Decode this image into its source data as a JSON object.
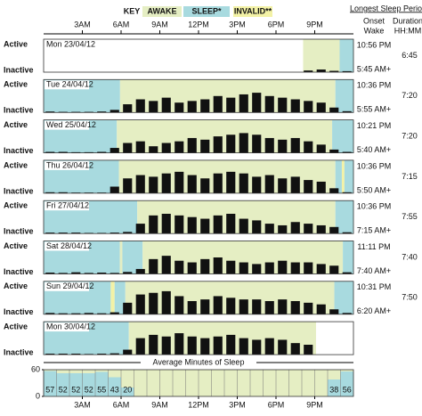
{
  "header": {
    "key": "KEY",
    "awake": "AWAKE",
    "sleep": "SLEEP*",
    "invalid": "INVALID**",
    "longest": "Longest Sleep Period",
    "onset": "Onset",
    "wake": "Wake",
    "duration": "Duration",
    "hhmm": "HH:MM"
  },
  "colors": {
    "awake": "#e5eec3",
    "sleep": "#a8dadf",
    "invalid": "#f3f2a6",
    "activity": "#111111"
  },
  "row_labels": {
    "active": "Active",
    "inactive": "Inactive"
  },
  "hour_range": [
    0,
    24
  ],
  "hour_ticks": [
    {
      "value": 3,
      "label": "3AM"
    },
    {
      "value": 6,
      "label": "6AM"
    },
    {
      "value": 9,
      "label": "9AM"
    },
    {
      "value": 12,
      "label": "12PM"
    },
    {
      "value": 15,
      "label": "3PM"
    },
    {
      "value": 18,
      "label": "6PM"
    },
    {
      "value": 21,
      "label": "9PM"
    }
  ],
  "activity_range": [
    0,
    100
  ],
  "days": [
    {
      "label": "Mon 23/04/12",
      "onset": "10:56 PM",
      "wake": "5:45 AM+",
      "duration": "6:45",
      "segments": [
        [
          20.1,
          22.93,
          "awake"
        ],
        [
          22.93,
          24,
          "sleep"
        ]
      ],
      "activity": [
        null,
        null,
        null,
        null,
        null,
        null,
        null,
        null,
        null,
        null,
        null,
        null,
        null,
        null,
        null,
        null,
        null,
        null,
        null,
        null,
        5,
        8,
        4,
        3
      ]
    },
    {
      "label": "Tue 24/04/12",
      "onset": "10:36 PM",
      "wake": "5:55 AM+",
      "duration": "7:20",
      "segments": [
        [
          0,
          5.92,
          "sleep"
        ],
        [
          5.92,
          22.6,
          "awake"
        ],
        [
          22.6,
          24,
          "sleep"
        ]
      ],
      "activity": [
        3,
        2,
        2,
        2,
        3,
        8,
        25,
        40,
        35,
        45,
        30,
        35,
        40,
        50,
        45,
        55,
        60,
        50,
        45,
        40,
        35,
        30,
        15,
        4
      ]
    },
    {
      "label": "Wed 25/04/12",
      "onset": "10:21 PM",
      "wake": "5:40 AM+",
      "duration": "7:20",
      "segments": [
        [
          0,
          5.67,
          "sleep"
        ],
        [
          5.67,
          22.35,
          "awake"
        ],
        [
          22.35,
          24,
          "sleep"
        ]
      ],
      "activity": [
        3,
        3,
        2,
        2,
        3,
        15,
        30,
        35,
        20,
        30,
        35,
        45,
        40,
        50,
        55,
        60,
        55,
        45,
        40,
        45,
        35,
        25,
        10,
        3
      ]
    },
    {
      "label": "Thu 26/04/12",
      "onset": "10:36 PM",
      "wake": "5:50 AM+",
      "duration": "7:15",
      "segments": [
        [
          0,
          5.83,
          "sleep"
        ],
        [
          5.83,
          22.6,
          "awake"
        ],
        [
          22.6,
          23.1,
          "sleep"
        ],
        [
          23.1,
          23.3,
          "invalid"
        ],
        [
          23.3,
          24,
          "sleep"
        ]
      ],
      "activity": [
        3,
        3,
        2,
        2,
        2,
        20,
        45,
        55,
        50,
        60,
        65,
        55,
        45,
        60,
        65,
        60,
        50,
        55,
        45,
        50,
        40,
        35,
        15,
        3
      ]
    },
    {
      "label": "Fri 27/04/12",
      "onset": "10:36 PM",
      "wake": "7:15 AM+",
      "duration": "7:55",
      "segments": [
        [
          0,
          7.25,
          "sleep"
        ],
        [
          7.25,
          22.6,
          "awake"
        ],
        [
          22.6,
          24,
          "sleep"
        ]
      ],
      "activity": [
        3,
        3,
        3,
        2,
        2,
        3,
        5,
        30,
        55,
        60,
        55,
        50,
        45,
        55,
        60,
        45,
        40,
        30,
        25,
        35,
        30,
        25,
        20,
        4
      ]
    },
    {
      "label": "Sat 28/04/12",
      "onset": "11:11 PM",
      "wake": "7:40 AM+",
      "duration": "7:40",
      "segments": [
        [
          0,
          5.9,
          "sleep"
        ],
        [
          5.9,
          6.1,
          "awake"
        ],
        [
          6.1,
          7.67,
          "sleep"
        ],
        [
          7.67,
          23.18,
          "awake"
        ],
        [
          23.18,
          24,
          "sleep"
        ]
      ],
      "activity": [
        4,
        3,
        5,
        3,
        4,
        3,
        6,
        15,
        45,
        55,
        40,
        35,
        45,
        50,
        40,
        35,
        30,
        35,
        40,
        35,
        35,
        30,
        25,
        5
      ]
    },
    {
      "label": "Sun 29/04/12",
      "onset": "10:31 PM",
      "wake": "6:20 AM+",
      "duration": "7:50",
      "segments": [
        [
          0,
          5.2,
          "sleep"
        ],
        [
          5.2,
          5.5,
          "invalid"
        ],
        [
          5.5,
          6.33,
          "sleep"
        ],
        [
          6.33,
          22.52,
          "awake"
        ],
        [
          22.52,
          24,
          "sleep"
        ]
      ],
      "activity": [
        4,
        3,
        3,
        4,
        3,
        6,
        35,
        60,
        65,
        70,
        55,
        40,
        45,
        55,
        50,
        45,
        45,
        40,
        45,
        40,
        35,
        30,
        15,
        4
      ]
    },
    {
      "label": "Mon 30/04/12",
      "segments": [
        [
          0,
          6.6,
          "sleep"
        ],
        [
          6.6,
          21.1,
          "awake"
        ]
      ],
      "activity": [
        3,
        3,
        3,
        2,
        3,
        4,
        15,
        50,
        60,
        55,
        65,
        55,
        50,
        55,
        60,
        50,
        45,
        50,
        45,
        35,
        30,
        null,
        null,
        null
      ]
    }
  ],
  "average": {
    "title": "Average Minutes of Sleep",
    "ylim": [
      0,
      60
    ],
    "yticks": [
      0,
      60
    ],
    "values": [
      57,
      52,
      52,
      52,
      55,
      43,
      20,
      0,
      0,
      0,
      0,
      0,
      0,
      0,
      0,
      0,
      0,
      0,
      0,
      0,
      0,
      0,
      38,
      56
    ]
  }
}
